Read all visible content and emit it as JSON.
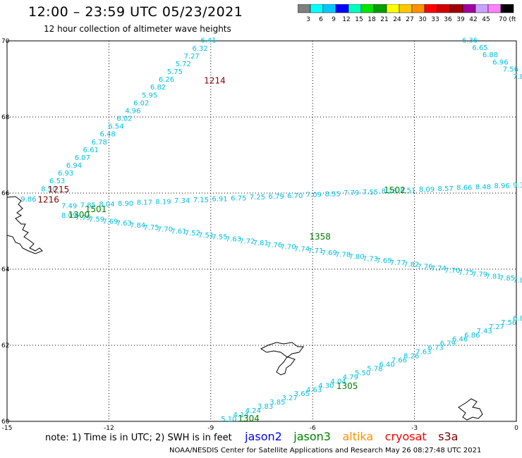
{
  "header": {
    "title": "12:00 – 23:59 UTC 05/23/2021",
    "subtitle": "12 hour collection of altimeter wave heights"
  },
  "colorbar": {
    "colors": [
      "#7f7f7f",
      "#00ffff",
      "#00c8ff",
      "#0000ff",
      "#00ffbf",
      "#00e400",
      "#00a000",
      "#ffff00",
      "#ffc800",
      "#ff9000",
      "#ff0000",
      "#d00000",
      "#a00000",
      "#a000a0",
      "#c8a0ff",
      "#ff80ff",
      "#000000"
    ],
    "labels": [
      "3",
      "6",
      "9",
      "12",
      "15",
      "18",
      "21",
      "24",
      "27",
      "30",
      "33",
      "36",
      "39",
      "42",
      "45",
      "70 (ft)"
    ]
  },
  "map": {
    "lon_ticks": [
      "-15",
      "-12",
      "-9",
      "-6",
      "-3",
      "0"
    ],
    "lat_ticks": [
      "70",
      "68",
      "66",
      "64",
      "62",
      "60"
    ],
    "lon_range": [
      -15,
      0
    ],
    "lat_range": [
      60,
      70
    ],
    "time_labels": [
      {
        "text": "1214",
        "color": "#800000",
        "lon": -9.2,
        "lat": 68.88
      },
      {
        "text": "1215",
        "color": "#800000",
        "lon": -13.8,
        "lat": 66.02
      },
      {
        "text": "1216",
        "color": "#800000",
        "lon": -14.1,
        "lat": 65.75
      },
      {
        "text": "1502",
        "color": "#008000",
        "lon": -3.9,
        "lat": 66.0
      },
      {
        "text": "1501",
        "color": "#008000",
        "lon": -12.7,
        "lat": 65.5
      },
      {
        "text": "1300",
        "color": "#008000",
        "lon": -13.2,
        "lat": 65.35
      },
      {
        "text": "1358",
        "color": "#008000",
        "lon": -6.1,
        "lat": 64.78
      },
      {
        "text": "1305",
        "color": "#008000",
        "lon": -5.3,
        "lat": 60.85
      },
      {
        "text": "1304",
        "color": "#008000",
        "lon": -8.2,
        "lat": 60.0
      }
    ],
    "wave_heights_track1": [
      "6.41",
      "6.32",
      "7.27",
      "5.72",
      "5.75",
      "6.26",
      "6.82",
      "5.95",
      "6.02",
      "4.96",
      "6.02",
      "6.54",
      "6.48",
      "6.78",
      "6.61",
      "6.07",
      "6.94",
      "6.93",
      "6.53",
      "8.50"
    ],
    "wave_heights_track2": [
      "6.36",
      "6.65",
      "6.88",
      "6.96",
      "7.56",
      "7.8"
    ],
    "wave_heights_track3": [
      "7.49",
      "7.85",
      "8.04",
      "8.90",
      "8.17",
      "8.19",
      "7.34",
      "7.15",
      "6.91",
      "6.75",
      "7.25",
      "6.79",
      "6.70",
      "7.09",
      "8.55",
      "7.79",
      "7.55",
      "8.28",
      "8.51",
      "8.09",
      "8.57",
      "8.66",
      "8.48",
      "8.96",
      "9.30"
    ],
    "wave_heights_track4": [
      "8.09",
      "7.79",
      "7.59",
      "7.69",
      "7.63",
      "7.84",
      "7.75",
      "7.70",
      "7.61",
      "7.52",
      "7.51",
      "7.55",
      "7.63",
      "7.72",
      "7.81",
      "7.76",
      "7.70",
      "7.74",
      "7.71",
      "7.69",
      "7.78",
      "7.80",
      "7.73",
      "7.69",
      "7.77",
      "7.82",
      "7.76",
      "7.74",
      "7.70",
      "7.75",
      "7.79",
      "7.81",
      "7.85",
      "7.89"
    ],
    "wave_heights_track5": [
      "5.10",
      "4.14",
      "4.24",
      "3.83",
      "3.85",
      "3.27",
      "3.65",
      "4.63",
      "4.30",
      "4.04",
      "4.79",
      "5.50",
      "5.78",
      "6.40",
      "7.66",
      "8.26",
      "7.63",
      "6.73",
      "6.79",
      "6.46",
      "6.86",
      "7.43",
      "7.27",
      "7.56",
      "6.8"
    ],
    "single_value": {
      "text": "9.86",
      "color": "#0000c8",
      "lon": -14.6,
      "lat": 65.78
    }
  },
  "legend": {
    "note": "note:  1) Time is in UTC;  2) SWH is in feet",
    "satellites": [
      {
        "name": "jason2",
        "color": "#0000ff"
      },
      {
        "name": "jason3",
        "color": "#008000"
      },
      {
        "name": "altika",
        "color": "#ff9000"
      },
      {
        "name": "cryosat",
        "color": "#ff0000"
      },
      {
        "name": "s3a",
        "color": "#800000"
      }
    ]
  },
  "footer": {
    "credit": "NOAA/NESDIS Center for Satellite Applications and Research    May 26 08:27:48 UTC 2021"
  }
}
